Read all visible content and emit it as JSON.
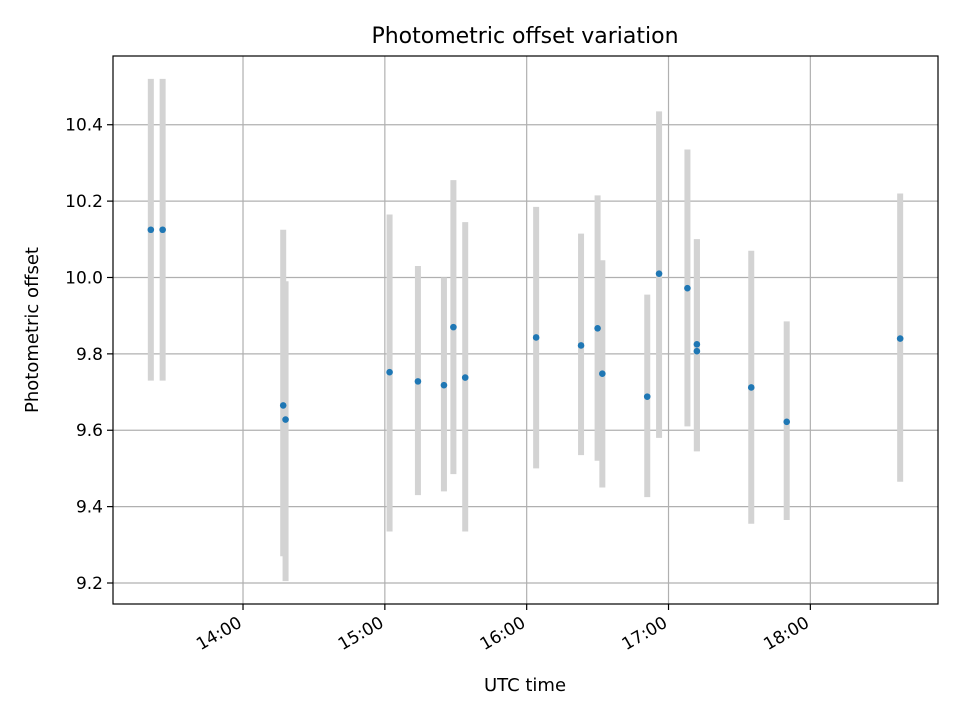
{
  "chart_data": {
    "type": "scatter",
    "title": "Photometric offset variation",
    "xlabel": "UTC time",
    "ylabel": "Photometric offset",
    "xlim": [
      "13:05",
      "18:54"
    ],
    "ylim": [
      9.145,
      10.58
    ],
    "x_ticks": [
      "14:00",
      "15:00",
      "16:00",
      "17:00",
      "18:00"
    ],
    "y_ticks": [
      9.2,
      9.4,
      9.6,
      9.8,
      10.0,
      10.2,
      10.4
    ],
    "y_tick_labels": [
      "9.2",
      "9.4",
      "9.6",
      "9.8",
      "10.0",
      "10.2",
      "10.4"
    ],
    "grid": true,
    "series": [
      {
        "marker_color": "#1f77b4",
        "errorbar_color": "#d3d3d3",
        "points": [
          {
            "x": "13:21",
            "y": 10.125,
            "err_low": 9.73,
            "err_high": 10.52
          },
          {
            "x": "13:26",
            "y": 10.125,
            "err_low": 9.73,
            "err_high": 10.52
          },
          {
            "x": "14:17",
            "y": 9.665,
            "err_low": 9.27,
            "err_high": 10.125
          },
          {
            "x": "14:18",
            "y": 9.628,
            "err_low": 9.205,
            "err_high": 9.99
          },
          {
            "x": "15:02",
            "y": 9.752,
            "err_low": 9.335,
            "err_high": 10.165
          },
          {
            "x": "15:14",
            "y": 9.728,
            "err_low": 9.43,
            "err_high": 10.03
          },
          {
            "x": "15:25",
            "y": 9.718,
            "err_low": 9.44,
            "err_high": 10.0
          },
          {
            "x": "15:29",
            "y": 9.87,
            "err_low": 9.485,
            "err_high": 10.255
          },
          {
            "x": "15:34",
            "y": 9.738,
            "err_low": 9.335,
            "err_high": 10.145
          },
          {
            "x": "16:04",
            "y": 9.843,
            "err_low": 9.5,
            "err_high": 10.185
          },
          {
            "x": "16:23",
            "y": 9.822,
            "err_low": 9.535,
            "err_high": 10.115
          },
          {
            "x": "16:30",
            "y": 9.867,
            "err_low": 9.52,
            "err_high": 10.215
          },
          {
            "x": "16:32",
            "y": 9.748,
            "err_low": 9.45,
            "err_high": 10.045
          },
          {
            "x": "16:51",
            "y": 9.688,
            "err_low": 9.425,
            "err_high": 9.955
          },
          {
            "x": "16:56",
            "y": 10.01,
            "err_low": 9.58,
            "err_high": 10.435
          },
          {
            "x": "17:08",
            "y": 9.972,
            "err_low": 9.61,
            "err_high": 10.335
          },
          {
            "x": "17:12",
            "y": 9.825,
            "err_low": 9.545,
            "err_high": 10.1
          },
          {
            "x": "17:12",
            "y": 9.807,
            "err_low": 9.545,
            "err_high": 10.1
          },
          {
            "x": "17:35",
            "y": 9.712,
            "err_low": 9.355,
            "err_high": 10.07
          },
          {
            "x": "17:50",
            "y": 9.622,
            "err_low": 9.365,
            "err_high": 9.885
          },
          {
            "x": "18:38",
            "y": 9.84,
            "err_low": 9.465,
            "err_high": 10.22
          }
        ]
      }
    ]
  }
}
